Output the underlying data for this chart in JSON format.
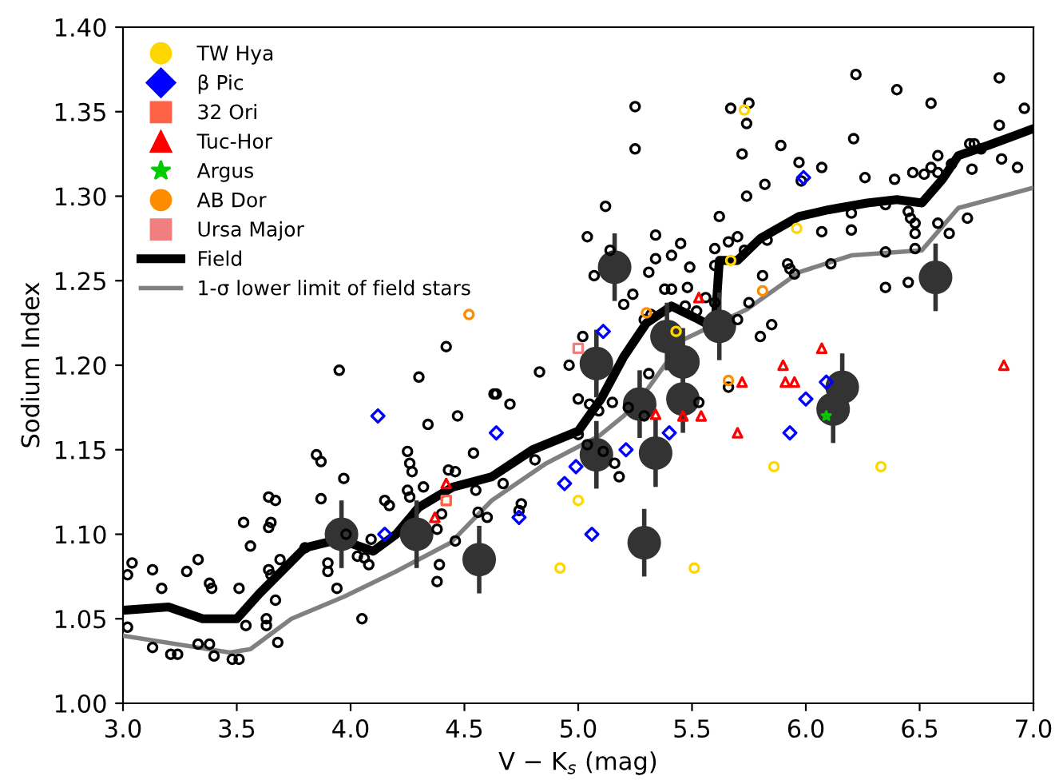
{
  "chart_data": {
    "type": "scatter",
    "xlabel": "V − K$_{s}$ (mag)",
    "ylabel": "Sodium Index",
    "xlim": [
      3.0,
      7.0
    ],
    "ylim": [
      1.0,
      1.4
    ],
    "xticks": [
      {
        "value": 3.0,
        "label": "3.0"
      },
      {
        "value": 3.5,
        "label": "3.5"
      },
      {
        "value": 4.0,
        "label": "4.0"
      },
      {
        "value": 4.5,
        "label": "4.5"
      },
      {
        "value": 5.0,
        "label": "5.0"
      },
      {
        "value": 5.5,
        "label": "5.5"
      },
      {
        "value": 6.0,
        "label": "6.0"
      },
      {
        "value": 6.5,
        "label": "6.5"
      },
      {
        "value": 7.0,
        "label": "7.0"
      }
    ],
    "yticks": [
      {
        "value": 1.0,
        "label": "1.00"
      },
      {
        "value": 1.05,
        "label": "1.05"
      },
      {
        "value": 1.1,
        "label": "1.10"
      },
      {
        "value": 1.15,
        "label": "1.15"
      },
      {
        "value": 1.2,
        "label": "1.20"
      },
      {
        "value": 1.25,
        "label": "1.25"
      },
      {
        "value": 1.3,
        "label": "1.30"
      },
      {
        "value": 1.35,
        "label": "1.35"
      },
      {
        "value": 1.4,
        "label": "1.40"
      }
    ],
    "grid": false,
    "legend": "top left",
    "series": [
      {
        "type": "scatter",
        "marker": "circle",
        "color": "#000000",
        "x": [
          3.02,
          3.04,
          3.13,
          3.17,
          3.02,
          3.13,
          3.21,
          3.24,
          3.28,
          3.33,
          3.38,
          3.39,
          3.33,
          3.38,
          3.4,
          3.48,
          3.51,
          3.53,
          3.56,
          3.51,
          3.54,
          3.63,
          3.63,
          3.64,
          3.67,
          3.65,
          3.64,
          3.69,
          3.64,
          3.65,
          3.67,
          3.68,
          3.8,
          3.85,
          3.87,
          3.87,
          3.9,
          3.9,
          3.94,
          3.97,
          3.98,
          4.03,
          4.05,
          4.09,
          4.06,
          4.08,
          4.15,
          4.17,
          4.25,
          4.26,
          4.27,
          4.25,
          4.26,
          4.32,
          4.34,
          4.4,
          4.38,
          4.39,
          4.38,
          4.46,
          4.43,
          4.46,
          4.47,
          4.54,
          4.56,
          4.6,
          4.55,
          4.63,
          4.7,
          4.75,
          4.74,
          4.67,
          4.81,
          5.07,
          4.42,
          3.95,
          4.3,
          4.64,
          4.83,
          4.96,
          5.02,
          5.25,
          5.25,
          5.67,
          5.75,
          5.74,
          5.72,
          5.89,
          5.97,
          5.98,
          6.07,
          5.82,
          5.74,
          5.62,
          5.12,
          5.34,
          5.45,
          5.41,
          5.34,
          5.31,
          5.49,
          5.6,
          5.66,
          5.7,
          5.6,
          5.73,
          5.83,
          5.92,
          5.93,
          5.95,
          6.07,
          6.2,
          6.2,
          6.22,
          6.4,
          6.55,
          6.85,
          6.96,
          6.21,
          6.26,
          6.39,
          6.47,
          6.52,
          6.55,
          6.58,
          6.58,
          6.64,
          6.72,
          6.74,
          6.77,
          6.85,
          6.86,
          6.93,
          6.73,
          6.35,
          6.45,
          6.46,
          6.48,
          6.48,
          6.48,
          6.58,
          6.63,
          6.71,
          6.35,
          6.45,
          6.35,
          6.11,
          5.04,
          5.14,
          5.41,
          5.6,
          5.7,
          5.75,
          5.81,
          5.85,
          5.8,
          5.2,
          5.24,
          5.29,
          5.38,
          5.48,
          5.52,
          5.56,
          5.47,
          5.32,
          5.0,
          5.05,
          5.09,
          5.15,
          5.22,
          5.0,
          5.04,
          5.11,
          5.16,
          5.18,
          5.29,
          5.53,
          5.66,
          5.31
        ],
        "values": [
          1.076,
          1.083,
          1.079,
          1.068,
          1.045,
          1.033,
          1.029,
          1.029,
          1.078,
          1.085,
          1.071,
          1.068,
          1.035,
          1.035,
          1.028,
          1.026,
          1.026,
          1.107,
          1.093,
          1.068,
          1.046,
          1.05,
          1.046,
          1.122,
          1.12,
          1.107,
          1.104,
          1.085,
          1.079,
          1.076,
          1.061,
          1.036,
          1.092,
          1.147,
          1.143,
          1.121,
          1.083,
          1.078,
          1.068,
          1.133,
          1.1,
          1.087,
          1.05,
          1.097,
          1.086,
          1.082,
          1.12,
          1.117,
          1.149,
          1.142,
          1.137,
          1.126,
          1.122,
          1.128,
          1.165,
          1.112,
          1.103,
          1.082,
          1.072,
          1.096,
          1.138,
          1.137,
          1.17,
          1.148,
          1.113,
          1.11,
          1.126,
          1.183,
          1.177,
          1.118,
          1.114,
          1.13,
          1.144,
          1.253,
          1.211,
          1.197,
          1.193,
          1.183,
          1.196,
          1.2,
          1.217,
          1.353,
          1.328,
          1.352,
          1.355,
          1.343,
          1.325,
          1.33,
          1.32,
          1.309,
          1.317,
          1.307,
          1.3,
          1.288,
          1.294,
          1.277,
          1.272,
          1.265,
          1.263,
          1.255,
          1.258,
          1.269,
          1.273,
          1.276,
          1.259,
          1.268,
          1.274,
          1.26,
          1.257,
          1.254,
          1.279,
          1.29,
          1.28,
          1.372,
          1.363,
          1.355,
          1.37,
          1.352,
          1.334,
          1.311,
          1.31,
          1.314,
          1.313,
          1.317,
          1.314,
          1.324,
          1.319,
          1.331,
          1.331,
          1.328,
          1.342,
          1.322,
          1.317,
          1.316,
          1.295,
          1.291,
          1.287,
          1.284,
          1.278,
          1.269,
          1.284,
          1.278,
          1.287,
          1.246,
          1.249,
          1.267,
          1.26,
          1.276,
          1.268,
          1.245,
          1.237,
          1.227,
          1.237,
          1.253,
          1.224,
          1.217,
          1.236,
          1.242,
          1.227,
          1.245,
          1.246,
          1.232,
          1.24,
          1.235,
          1.23,
          1.18,
          1.177,
          1.173,
          1.178,
          1.175,
          1.159,
          1.153,
          1.149,
          1.142,
          1.134,
          1.17,
          1.178,
          1.187,
          1.195
        ]
      },
      {
        "type": "scatter",
        "marker": "circle",
        "color": "#333333",
        "x": [
          3.96,
          4.29,
          4.565,
          5.08,
          5.34,
          5.29,
          5.46,
          6.12,
          6.16,
          5.16,
          5.62,
          6.57,
          5.08,
          5.46,
          5.39,
          5.27
        ],
        "values": [
          1.1,
          1.1,
          1.085,
          1.147,
          1.148,
          1.095,
          1.18,
          1.174,
          1.187,
          1.258,
          1.223,
          1.252,
          1.201,
          1.202,
          1.217,
          1.177
        ],
        "errors": [
          0.02,
          0.02,
          0.02,
          0.02,
          0.02,
          0.02,
          0.02,
          0.02,
          0.02,
          0.02,
          0.02,
          0.02,
          0.02,
          0.02,
          0.02,
          0.02
        ]
      },
      {
        "type": "scatter",
        "name": "TW Hya",
        "marker": "circle",
        "color": "#ffd700",
        "x": [
          5.0,
          4.92,
          5.51,
          5.86,
          6.33,
          5.73,
          5.96,
          5.67,
          5.43
        ],
        "values": [
          1.12,
          1.08,
          1.08,
          1.14,
          1.14,
          1.351,
          1.281,
          1.262,
          1.22
        ]
      },
      {
        "type": "scatter",
        "name": "β Pic",
        "marker": "diamond",
        "color": "#0000ff",
        "x": [
          4.12,
          4.64,
          4.15,
          4.74,
          4.94,
          4.99,
          5.06,
          5.4,
          5.21,
          6.0,
          5.93,
          6.09,
          5.99,
          5.11
        ],
        "values": [
          1.17,
          1.16,
          1.1,
          1.11,
          1.13,
          1.14,
          1.1,
          1.16,
          1.15,
          1.18,
          1.16,
          1.19,
          1.311,
          1.22
        ]
      },
      {
        "type": "scatter",
        "name": "32 Ori",
        "marker": "square",
        "color": "#ff6347",
        "x": [
          4.42
        ],
        "values": [
          1.12
        ]
      },
      {
        "type": "scatter",
        "name": "Tuc-Hor",
        "marker": "triangle",
        "color": "#ff0000",
        "x": [
          6.07,
          5.9,
          5.72,
          5.91,
          5.95,
          6.87,
          5.7,
          5.54,
          5.34,
          5.46,
          4.42,
          4.37,
          5.53
        ],
        "values": [
          1.21,
          1.2,
          1.19,
          1.19,
          1.19,
          1.2,
          1.16,
          1.17,
          1.171,
          1.17,
          1.13,
          1.11,
          1.24
        ]
      },
      {
        "type": "scatter",
        "name": "Argus",
        "marker": "star",
        "color": "#00cc00",
        "x": [
          6.09
        ],
        "values": [
          1.17
        ]
      },
      {
        "type": "scatter",
        "name": "AB Dor",
        "marker": "circle",
        "color": "#ff8c00",
        "x": [
          4.52,
          5.3,
          5.66,
          5.81
        ],
        "values": [
          1.23,
          1.231,
          1.191,
          1.244
        ]
      },
      {
        "type": "scatter",
        "name": "Ursa Major",
        "marker": "square",
        "color": "#f08080",
        "x": [
          5.0
        ],
        "values": [
          1.21
        ]
      },
      {
        "type": "line",
        "name": "Field",
        "color": "#000000",
        "x": [
          3.0,
          3.2,
          3.35,
          3.5,
          3.6,
          3.8,
          3.95,
          4.1,
          4.2,
          4.3,
          4.45,
          4.62,
          4.8,
          5.0,
          5.1,
          5.2,
          5.3,
          5.41,
          5.53,
          5.6,
          5.62,
          5.7,
          5.8,
          5.97,
          6.1,
          6.27,
          6.4,
          6.51,
          6.6,
          6.67,
          6.8,
          7.0
        ],
        "values": [
          1.055,
          1.057,
          1.05,
          1.05,
          1.065,
          1.092,
          1.097,
          1.09,
          1.1,
          1.116,
          1.128,
          1.134,
          1.15,
          1.161,
          1.18,
          1.205,
          1.225,
          1.235,
          1.227,
          1.222,
          1.262,
          1.262,
          1.275,
          1.288,
          1.292,
          1.296,
          1.298,
          1.296,
          1.31,
          1.324,
          1.33,
          1.34
        ]
      },
      {
        "type": "line",
        "name": "1-σ lower limit of field stars",
        "color": "#808080",
        "x": [
          3.0,
          3.47,
          3.56,
          3.74,
          3.97,
          4.2,
          4.44,
          4.62,
          4.86,
          5.09,
          5.2,
          5.3,
          5.46,
          5.74,
          5.97,
          6.2,
          6.51,
          6.67,
          7.0
        ],
        "values": [
          1.04,
          1.03,
          1.032,
          1.05,
          1.063,
          1.078,
          1.095,
          1.12,
          1.142,
          1.158,
          1.17,
          1.185,
          1.215,
          1.233,
          1.255,
          1.265,
          1.268,
          1.293,
          1.305
        ]
      }
    ]
  }
}
